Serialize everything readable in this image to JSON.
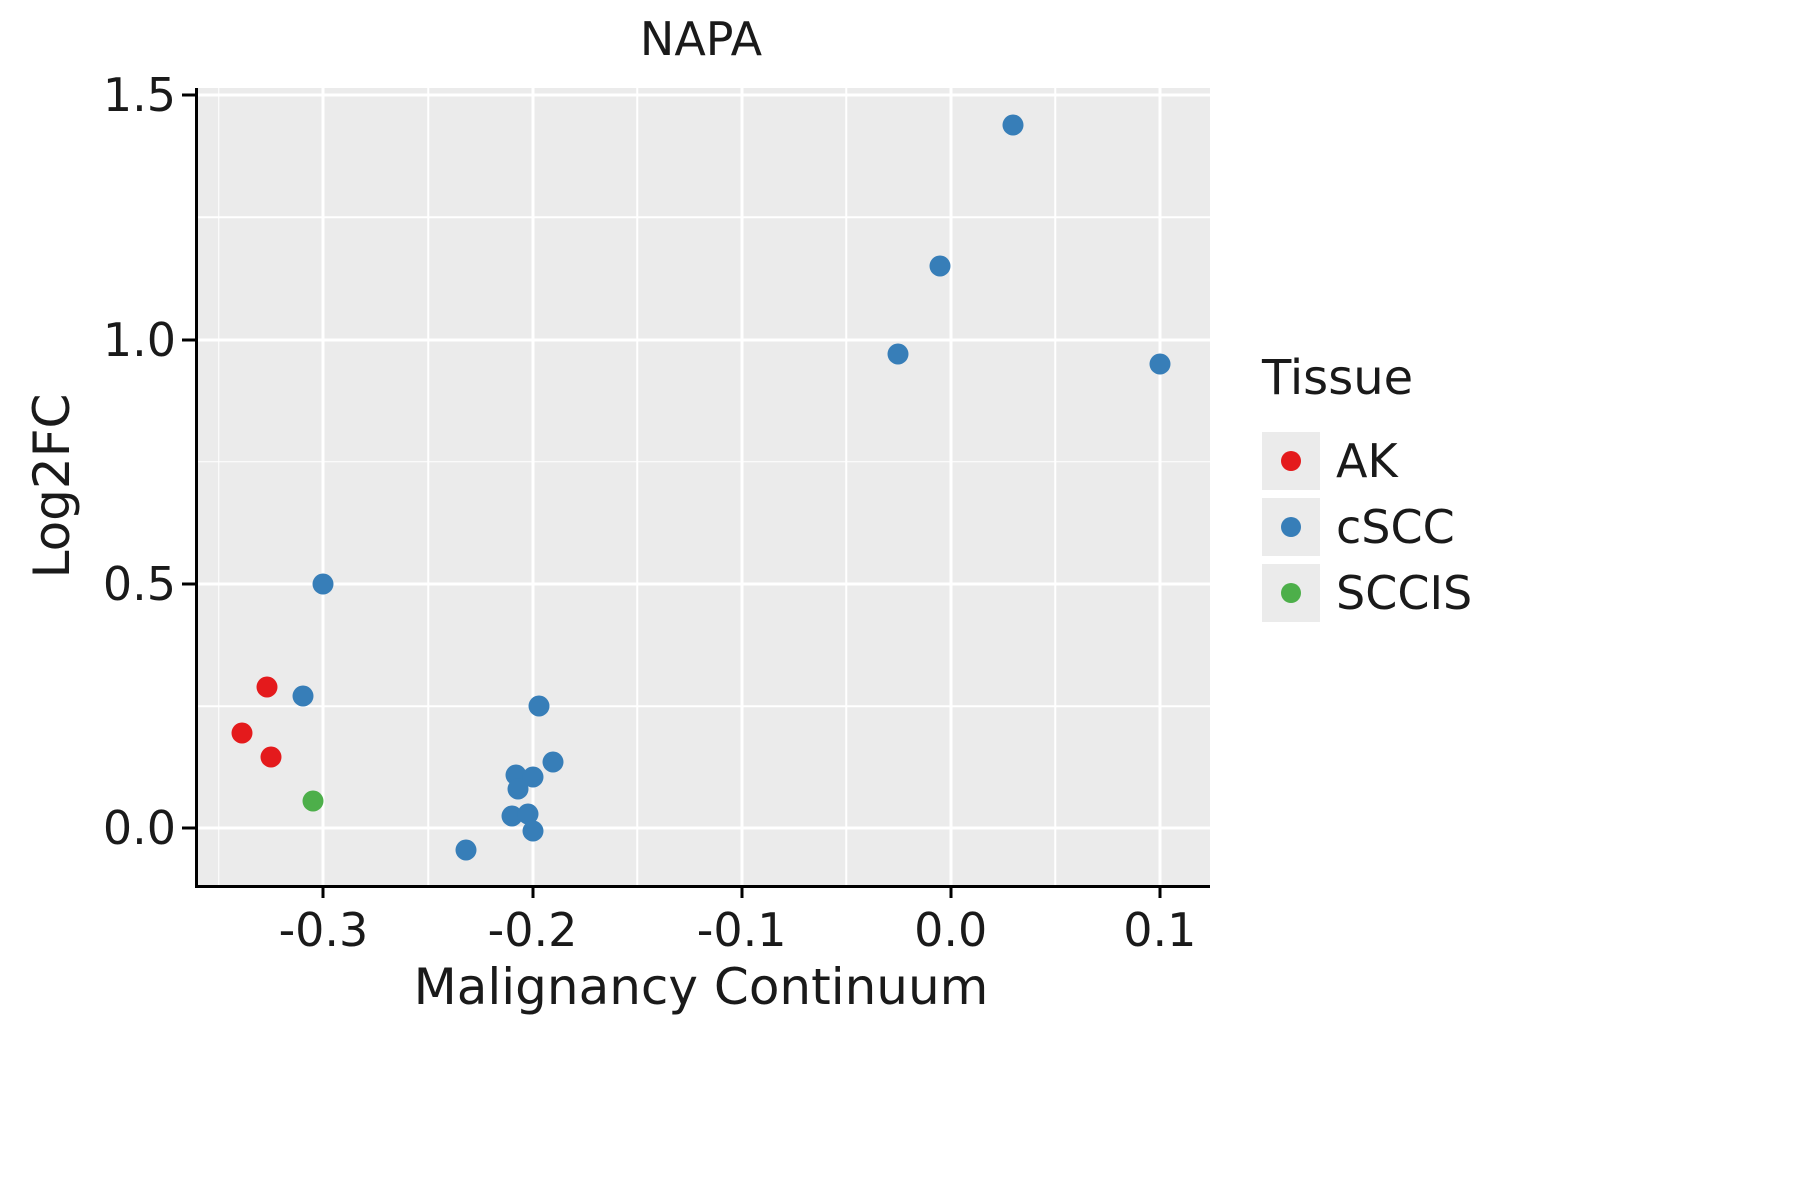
{
  "chart_data": {
    "type": "scatter",
    "title": "NAPA",
    "xlabel": "Malignancy Continuum",
    "ylabel": "Log2FC",
    "xlim": [
      -0.36,
      0.124
    ],
    "ylim": [
      -0.116,
      1.515
    ],
    "grid": true,
    "panel_background": "#ebebeb",
    "grid_color": "#ffffff",
    "x_ticks": [
      {
        "value": -0.3,
        "label": "-0.3"
      },
      {
        "value": -0.2,
        "label": "-0.2"
      },
      {
        "value": -0.1,
        "label": "-0.1"
      },
      {
        "value": 0.0,
        "label": "0.0"
      },
      {
        "value": 0.1,
        "label": "0.1"
      }
    ],
    "y_ticks": [
      {
        "value": 0.0,
        "label": "0.0"
      },
      {
        "value": 0.5,
        "label": "0.5"
      },
      {
        "value": 1.0,
        "label": "1.0"
      },
      {
        "value": 1.5,
        "label": "1.5"
      }
    ],
    "x_minor_ticks": [
      -0.35,
      -0.25,
      -0.15,
      -0.05,
      0.05
    ],
    "y_minor_ticks": [
      0.25,
      0.75,
      1.25
    ],
    "legend": {
      "title": "Tissue",
      "position": "right",
      "entries": [
        "AK",
        "cSCC",
        "SCCIS"
      ]
    },
    "series": [
      {
        "name": "AK",
        "color": "#e41a1c",
        "points": [
          [
            -0.339,
            0.195
          ],
          [
            -0.327,
            0.29
          ],
          [
            -0.325,
            0.145
          ]
        ]
      },
      {
        "name": "cSCC",
        "color": "#377eb8",
        "points": [
          [
            -0.31,
            0.27
          ],
          [
            -0.3,
            0.5
          ],
          [
            -0.232,
            -0.045
          ],
          [
            -0.21,
            0.025
          ],
          [
            -0.208,
            0.11
          ],
          [
            -0.207,
            0.08
          ],
          [
            -0.202,
            0.03
          ],
          [
            -0.2,
            0.105
          ],
          [
            -0.2,
            -0.005
          ],
          [
            -0.197,
            0.25
          ],
          [
            -0.19,
            0.135
          ],
          [
            -0.025,
            0.97
          ],
          [
            -0.005,
            1.15
          ],
          [
            0.03,
            1.44
          ],
          [
            0.1,
            0.95
          ]
        ]
      },
      {
        "name": "SCCIS",
        "color": "#4daf4a",
        "points": [
          [
            -0.305,
            0.055
          ]
        ]
      }
    ]
  }
}
